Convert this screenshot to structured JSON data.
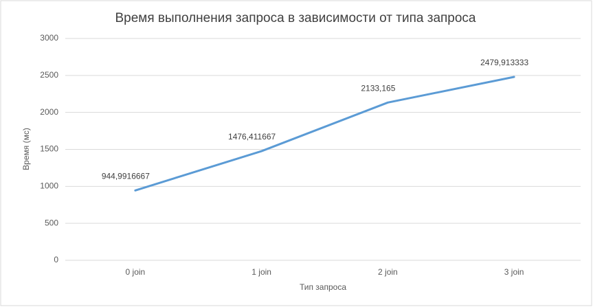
{
  "chart_data": {
    "type": "line",
    "title": "Время выполнения запроса в зависимости от типа запроса",
    "x_label": "Тип запроса",
    "y_label": "Время (мс)",
    "categories": [
      "0 join",
      "1 join",
      "2 join",
      "3 join"
    ],
    "values": [
      944.9916667,
      1476.411667,
      2133.165,
      2479.913333
    ],
    "value_labels": [
      "944,9916667",
      "1476,411667",
      "2133,165",
      "2479,913333"
    ],
    "color": "#5b9bd5",
    "ylim": [
      0,
      3000
    ],
    "yticks": [
      0,
      500,
      1000,
      1500,
      2000,
      2500,
      3000
    ],
    "grid": true
  }
}
